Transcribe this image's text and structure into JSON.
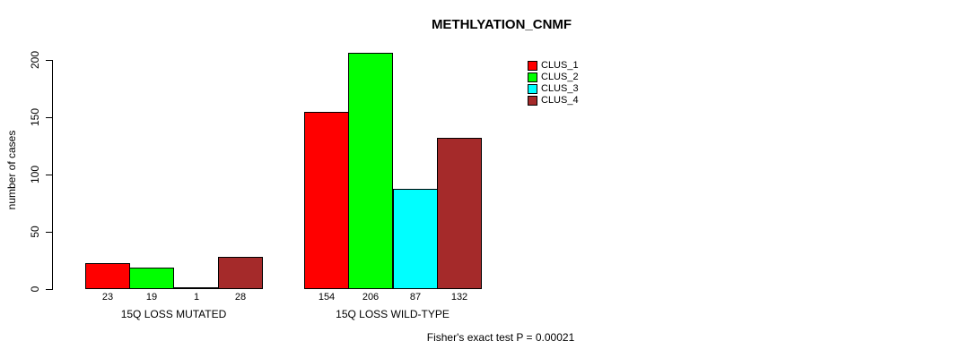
{
  "chart_data": {
    "type": "bar",
    "title": "METHLYATION_CNMF",
    "ylabel": "number of cases",
    "xlabel": "",
    "categories": [
      "15Q LOSS MUTATED",
      "15Q LOSS WILD-TYPE"
    ],
    "series": [
      {
        "name": "CLUS_1",
        "color": "#ff0000",
        "values": [
          23,
          154
        ]
      },
      {
        "name": "CLUS_2",
        "color": "#00ff00",
        "values": [
          19,
          206
        ]
      },
      {
        "name": "CLUS_3",
        "color": "#00ffff",
        "values": [
          1,
          87
        ]
      },
      {
        "name": "CLUS_4",
        "color": "#a52a2a",
        "values": [
          28,
          132
        ]
      }
    ],
    "yticks": [
      0,
      50,
      100,
      150,
      200
    ],
    "ylim": [
      0,
      200
    ],
    "grid": false,
    "legend_position": "top-right",
    "bar_border_color": "#000000",
    "annotation": "Fisher's exact test P = 0.00021"
  }
}
